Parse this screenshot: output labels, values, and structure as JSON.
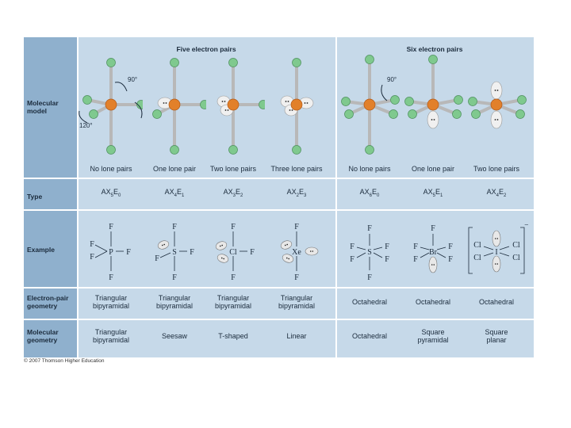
{
  "header": {
    "five_pairs": "Five electron pairs",
    "six_pairs": "Six electron pairs"
  },
  "row_labels": {
    "model": [
      "Molecular",
      "model"
    ],
    "type": "Type",
    "example": "Example",
    "epg": [
      "Electron-pair",
      "geometry"
    ],
    "mg": [
      "Molecular",
      "geometry"
    ]
  },
  "angles": {
    "a90": "90°",
    "a120": "120°"
  },
  "columns": [
    {
      "caption": "No lone pairs",
      "type": "AX5E0",
      "epg": [
        "Triangular",
        "bipyramidal"
      ],
      "mg": [
        "Triangular",
        "bipyramidal"
      ],
      "center": "P"
    },
    {
      "caption": "One lone pair",
      "type": "AX4E1",
      "epg": [
        "Triangular",
        "bipyramidal"
      ],
      "mg": [
        "Seesaw",
        ""
      ],
      "center": "S"
    },
    {
      "caption": "Two lone pairs",
      "type": "AX3E2",
      "epg": [
        "Triangular",
        "bipyramidal"
      ],
      "mg": [
        "T-shaped",
        ""
      ],
      "center": "Cl"
    },
    {
      "caption": "Three lone pairs",
      "type": "AX2E3",
      "epg": [
        "Triangular",
        "bipyramidal"
      ],
      "mg": [
        "Linear",
        ""
      ],
      "center": "Xe"
    },
    {
      "caption": "No lone pairs",
      "type": "AX6E0",
      "epg": [
        "Octahedral",
        ""
      ],
      "mg": [
        "Octahedral",
        ""
      ],
      "center": "S"
    },
    {
      "caption": "One lone pair",
      "type": "AX5E1",
      "epg": [
        "Octahedral",
        ""
      ],
      "mg": [
        "Square",
        "pyramidal"
      ],
      "center": "Br"
    },
    {
      "caption": "Two lone pairs",
      "type": "AX4E2",
      "epg": [
        "Octahedral",
        ""
      ],
      "mg": [
        "Square",
        "planar"
      ],
      "center": "I"
    }
  ],
  "ligand": "F",
  "ligand_cl": "Cl",
  "charge": "−",
  "credit": "© 2007 Thomson Higher Education",
  "colors": {
    "central_atom": "#e2802a",
    "ligand_atom": "#7fc98e",
    "bond": "#b8b8b8",
    "lone_pair": "#f0f0f0"
  }
}
